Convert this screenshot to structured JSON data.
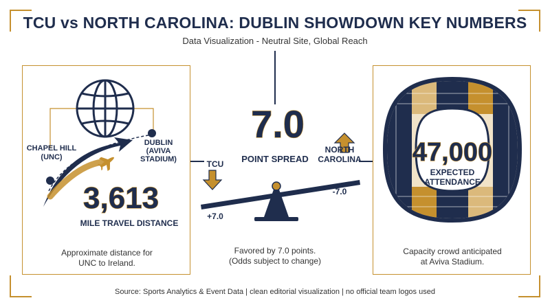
{
  "header": {
    "title": "TCU vs NORTH CAROLINA: DUBLIN SHOWDOWN KEY NUMBERS",
    "subtitle": "Data Visualization - Neutral Site, Global Reach"
  },
  "travel": {
    "origin_line1": "CHAPEL HILL",
    "origin_line2": "(UNC)",
    "dest_line1": "DUBLIN",
    "dest_line2": "(AVIVA",
    "dest_line3": "STADIUM)",
    "distance": "3,613",
    "distance_label": "MILE TRAVEL DISTANCE",
    "caption_line1": "Approximate distance for",
    "caption_line2": "UNC to Ireland."
  },
  "spread": {
    "value": "7.0",
    "label": "POINT SPREAD",
    "team_left": "TCU",
    "team_right_line1": "NORTH",
    "team_right_line2": "CAROLINA",
    "left_line": "+7.0",
    "right_line": "-7.0",
    "caption_line1": "Favored by 7.0 points.",
    "caption_line2": "(Odds subject to change)"
  },
  "attendance": {
    "value": "47,000",
    "label_line1": "EXPECTED",
    "label_line2": "ATTENDANCE",
    "caption_line1": "Capacity crowd anticipated",
    "caption_line2": "at Aviva Stadium."
  },
  "footer": {
    "source": "Source: Sports Analytics & Event Data | clean editorial visualization | no official team logos used"
  },
  "colors": {
    "navy": "#1f2d4d",
    "gold": "#c5902e",
    "cream": "#f1e3c8"
  }
}
